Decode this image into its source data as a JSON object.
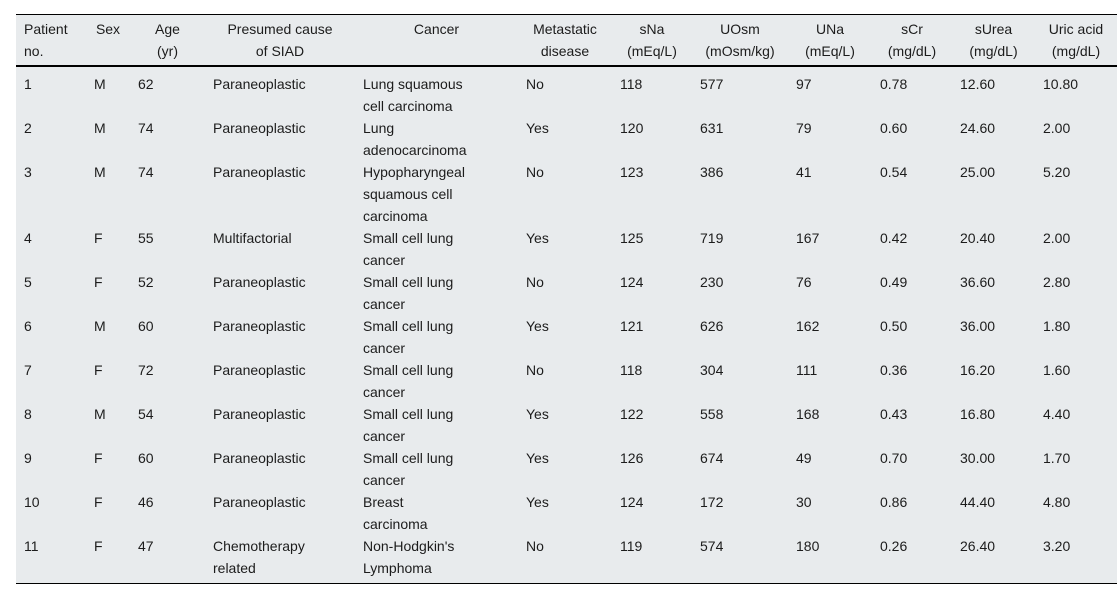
{
  "colors": {
    "page_background": "#ffffff",
    "table_background": "#e8ebed",
    "rule_color": "#000000",
    "text_color": "#1c1c1c"
  },
  "table": {
    "columns": [
      {
        "label": "Patient\nno."
      },
      {
        "label": "Sex"
      },
      {
        "label": "Age\n(yr)"
      },
      {
        "label": "Presumed cause\nof SIAD"
      },
      {
        "label": "Cancer"
      },
      {
        "label": "Metastatic\ndisease"
      },
      {
        "label": "sNa\n(mEq/L)"
      },
      {
        "label": "UOsm\n(mOsm/kg)"
      },
      {
        "label": "UNa\n(mEq/L)"
      },
      {
        "label": "sCr\n(mg/dL)"
      },
      {
        "label": "sUrea\n(mg/dL)"
      },
      {
        "label": "Uric acid\n(mg/dL)"
      }
    ],
    "rows": [
      [
        "1",
        "M",
        "62",
        "Paraneoplastic",
        "Lung squamous\ncell carcinoma",
        "No",
        "118",
        "577",
        "97",
        "0.78",
        "12.60",
        "10.80"
      ],
      [
        "2",
        "M",
        "74",
        "Paraneoplastic",
        "Lung\nadenocarcinoma",
        "Yes",
        "120",
        "631",
        "79",
        "0.60",
        "24.60",
        "2.00"
      ],
      [
        "3",
        "M",
        "74",
        "Paraneoplastic",
        "Hypopharyngeal\nsquamous cell\ncarcinoma",
        "No",
        "123",
        "386",
        "41",
        "0.54",
        "25.00",
        "5.20"
      ],
      [
        "4",
        "F",
        "55",
        "Multifactorial",
        "Small cell lung\ncancer",
        "Yes",
        "125",
        "719",
        "167",
        "0.42",
        "20.40",
        "2.00"
      ],
      [
        "5",
        "F",
        "52",
        "Paraneoplastic",
        "Small cell lung\ncancer",
        "No",
        "124",
        "230",
        "76",
        "0.49",
        "36.60",
        "2.80"
      ],
      [
        "6",
        "M",
        "60",
        "Paraneoplastic",
        "Small cell lung\ncancer",
        "Yes",
        "121",
        "626",
        "162",
        "0.50",
        "36.00",
        "1.80"
      ],
      [
        "7",
        "F",
        "72",
        "Paraneoplastic",
        "Small cell lung\ncancer",
        "No",
        "118",
        "304",
        "111",
        "0.36",
        "16.20",
        "1.60"
      ],
      [
        "8",
        "M",
        "54",
        "Paraneoplastic",
        "Small cell lung\ncancer",
        "Yes",
        "122",
        "558",
        "168",
        "0.43",
        "16.80",
        "4.40"
      ],
      [
        "9",
        "F",
        "60",
        "Paraneoplastic",
        "Small cell lung\ncancer",
        "Yes",
        "126",
        "674",
        "49",
        "0.70",
        "30.00",
        "1.70"
      ],
      [
        "10",
        "F",
        "46",
        "Paraneoplastic",
        "Breast\ncarcinoma",
        "Yes",
        "124",
        "172",
        "30",
        "0.86",
        "44.40",
        "4.80"
      ],
      [
        "11",
        "F",
        "47",
        "Chemotherapy\nrelated",
        "Non-Hodgkin's\nLymphoma",
        "No",
        "119",
        "574",
        "180",
        "0.26",
        "26.40",
        "3.20"
      ]
    ]
  }
}
